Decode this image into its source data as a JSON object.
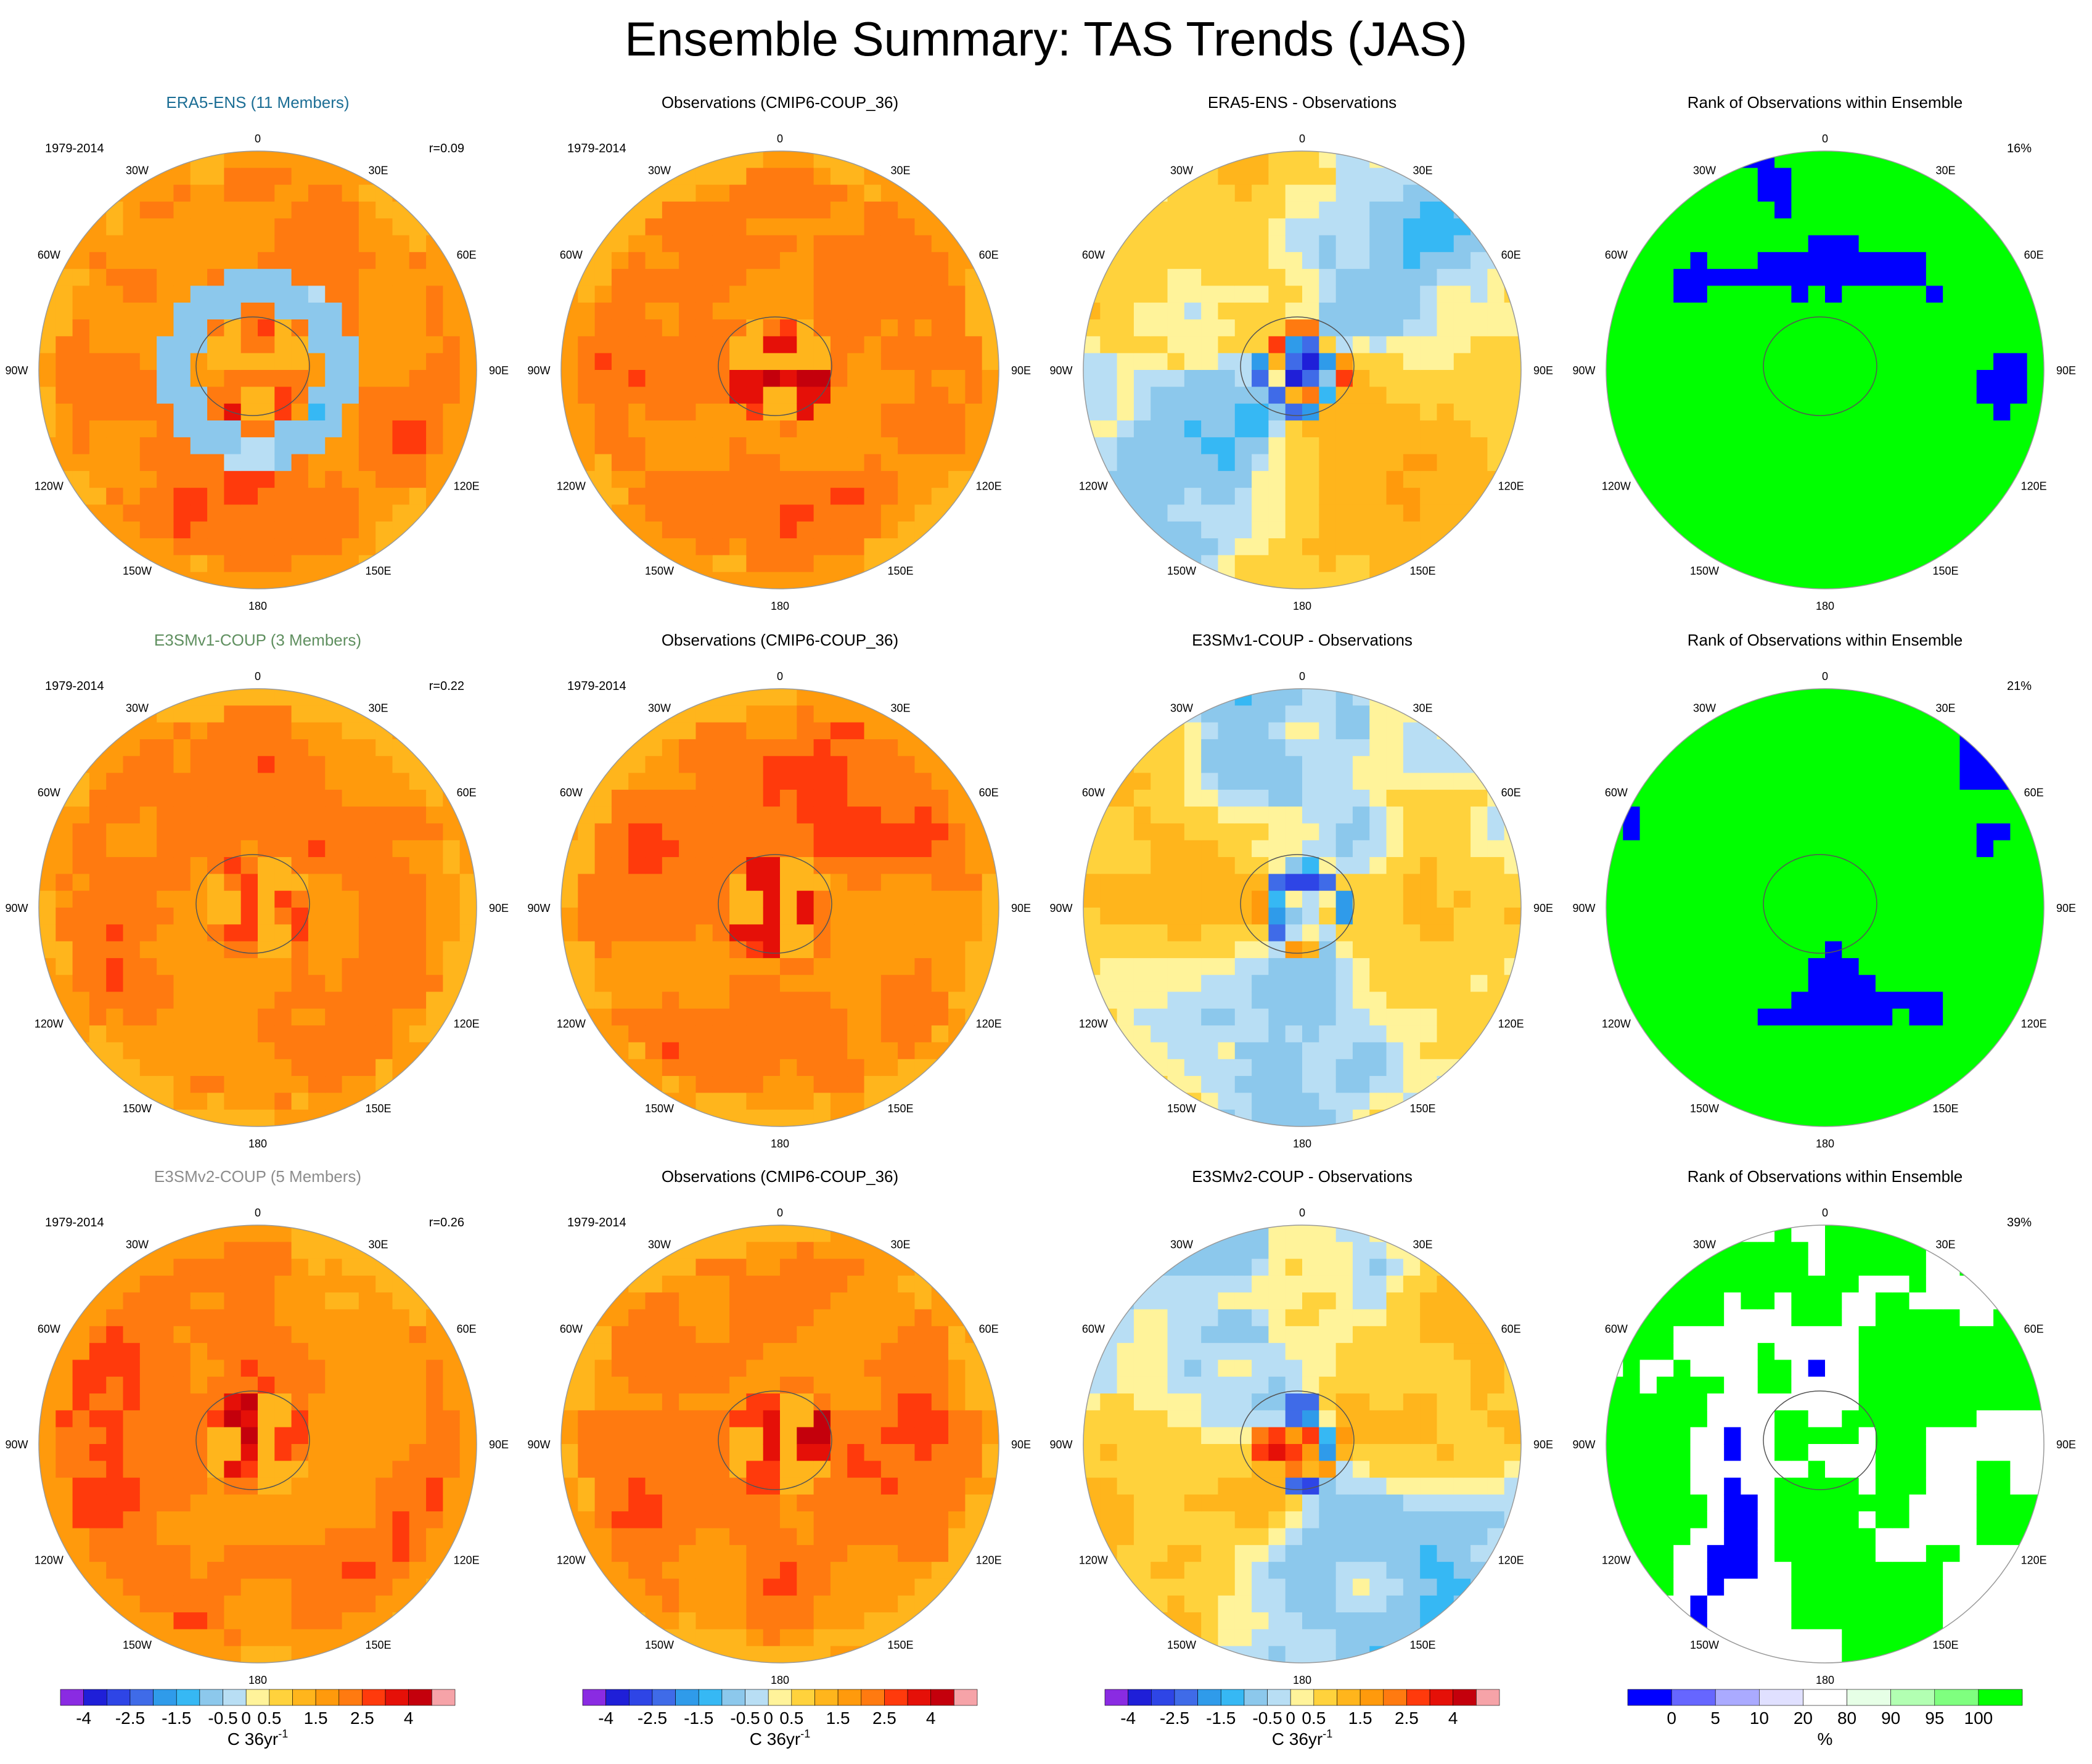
{
  "page": {
    "title": "Ensemble Summary: TAS Trends (JAS)"
  },
  "colors": {
    "trend_levels": [
      "#8a2be2",
      "#1f1fd8",
      "#2e45e6",
      "#3f6be8",
      "#2f9bea",
      "#36b8f4",
      "#8cc8ec",
      "#b8def4",
      "#fff39a",
      "#ffd23c",
      "#ffb51c",
      "#ff9a0c",
      "#ff7a10",
      "#ff3a0c",
      "#e51008",
      "#c4000c",
      "#f6a3a8"
    ],
    "rank_levels": [
      "#0000ff",
      "#6666ff",
      "#aaaaff",
      "#e0e0ff",
      "#ffffff",
      "#e6ffe6",
      "#b2ffb2",
      "#7fff7f",
      "#00ff00"
    ],
    "row_label_colors": [
      "#1c6e95",
      "#5f8f5f",
      "#8c8c8c"
    ]
  },
  "chart_data": {
    "type": "polar-map-panel-grid",
    "region": "Southern Hemisphere polar stereographic",
    "lon_labels": [
      "0",
      "30E",
      "60E",
      "90E",
      "120E",
      "150E",
      "180",
      "150W",
      "120W",
      "90W",
      "60W",
      "30W"
    ],
    "rows": [
      {
        "panels": [
          {
            "title": "ERA5-ENS (11 Members)",
            "period": "1979-2014",
            "corner": "r=0.09",
            "field": "trend"
          },
          {
            "title": "Observations (CMIP6-COUP_36)",
            "period": "1979-2014",
            "corner": "",
            "field": "trend"
          },
          {
            "title": "ERA5-ENS - Observations",
            "period": "",
            "corner": "",
            "field": "difference"
          },
          {
            "title": "Rank of Observations within Ensemble",
            "period": "",
            "corner": "16%",
            "field": "rank"
          }
        ]
      },
      {
        "panels": [
          {
            "title": "E3SMv1-COUP (3 Members)",
            "period": "1979-2014",
            "corner": "r=0.22",
            "field": "trend"
          },
          {
            "title": "Observations (CMIP6-COUP_36)",
            "period": "1979-2014",
            "corner": "",
            "field": "trend"
          },
          {
            "title": "E3SMv1-COUP - Observations",
            "period": "",
            "corner": "",
            "field": "difference"
          },
          {
            "title": "Rank of Observations within Ensemble",
            "period": "",
            "corner": "21%",
            "field": "rank"
          }
        ]
      },
      {
        "panels": [
          {
            "title": "E3SMv2-COUP (5 Members)",
            "period": "1979-2014",
            "corner": "r=0.26",
            "field": "trend"
          },
          {
            "title": "Observations (CMIP6-COUP_36)",
            "period": "1979-2014",
            "corner": "",
            "field": "trend"
          },
          {
            "title": "E3SMv2-COUP - Observations",
            "period": "",
            "corner": "",
            "field": "difference"
          },
          {
            "title": "Rank of Observations within Ensemble",
            "period": "",
            "corner": "39%",
            "field": "rank"
          }
        ]
      }
    ],
    "colorbars": [
      {
        "ticks": [
          "-4",
          "-2.5",
          "-1.5",
          "-0.5",
          "0",
          "0.5",
          "1.5",
          "2.5",
          "4"
        ],
        "unit": "C 36yr",
        "unit_sup": "-1",
        "palette": "trend"
      },
      {
        "ticks": [
          "-4",
          "-2.5",
          "-1.5",
          "-0.5",
          "0",
          "0.5",
          "1.5",
          "2.5",
          "4"
        ],
        "unit": "C 36yr",
        "unit_sup": "-1",
        "palette": "trend"
      },
      {
        "ticks": [
          "-4",
          "-2.5",
          "-1.5",
          "-0.5",
          "0",
          "0.5",
          "1.5",
          "2.5",
          "4"
        ],
        "unit": "C 36yr",
        "unit_sup": "-1",
        "palette": "trend"
      },
      {
        "ticks": [
          "0",
          "5",
          "10",
          "20",
          "80",
          "90",
          "95",
          "100"
        ],
        "unit": "%",
        "unit_sup": "",
        "palette": "rank"
      }
    ]
  }
}
